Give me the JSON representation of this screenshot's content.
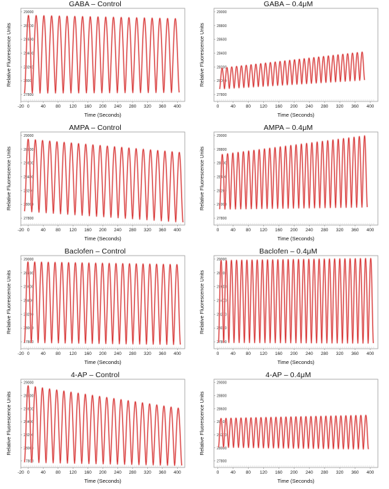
{
  "chart_data": [
    {
      "type": "line",
      "title": "GABA – Control",
      "xlabel": "Time (Seconds)",
      "ylabel": "Relative Fluorescence Units",
      "xlim": [
        -20,
        420
      ],
      "ylim": [
        27700,
        29050
      ],
      "xticks": [
        -20,
        0,
        40,
        80,
        120,
        160,
        200,
        240,
        280,
        320,
        360,
        400
      ],
      "yticks": [
        27800,
        28000,
        28200,
        28400,
        28600,
        28800,
        29000
      ],
      "xtick_labels": [
        "-20",
        "0",
        "40",
        "80",
        "120",
        "160",
        "200",
        "240",
        "280",
        "320",
        "360",
        "400"
      ],
      "ytick_labels": [
        "27800",
        "28000",
        "28200",
        "28400",
        "28600",
        "28800",
        "29000"
      ],
      "series": [
        {
          "x_start": -10,
          "x_end": 405,
          "oscillations": 20,
          "peak_start": 28950,
          "peak_end": 28900,
          "trough_start": 27820,
          "trough_end": 27830
        }
      ],
      "color": "#d42a2a"
    },
    {
      "type": "line",
      "title": "GABA – 0.4μM",
      "xlabel": "Time (Seconds)",
      "ylabel": "Relative Fluorescence Units",
      "xlim": [
        -10,
        420
      ],
      "ylim": [
        27700,
        29050
      ],
      "xticks": [
        0,
        40,
        80,
        120,
        160,
        200,
        240,
        280,
        320,
        360,
        400
      ],
      "yticks": [
        27800,
        28000,
        28200,
        28400,
        28600,
        28800,
        29000
      ],
      "xtick_labels": [
        "0",
        "40",
        "80",
        "120",
        "160",
        "200",
        "240",
        "280",
        "320",
        "360",
        "400"
      ],
      "ytick_labels": [
        "27800",
        "28000",
        "28200",
        "28400",
        "28600",
        "28800",
        "29000"
      ],
      "series": [
        {
          "x_start": 5,
          "x_end": 385,
          "oscillations": 30,
          "peak_start": 28180,
          "peak_end": 28420,
          "trough_start": 27880,
          "trough_end": 28010
        }
      ],
      "color": "#d42a2a"
    },
    {
      "type": "line",
      "title": "AMPA – Control",
      "xlabel": "Time (Seconds)",
      "ylabel": "Relative Fluorescence Units",
      "xlim": [
        -20,
        420
      ],
      "ylim": [
        27700,
        29050
      ],
      "xticks": [
        -20,
        0,
        40,
        80,
        120,
        160,
        200,
        240,
        280,
        320,
        360,
        400
      ],
      "yticks": [
        27800,
        28000,
        28200,
        28400,
        28600,
        28800,
        29000
      ],
      "xtick_labels": [
        "-20",
        "0",
        "40",
        "80",
        "120",
        "160",
        "200",
        "240",
        "280",
        "320",
        "360",
        "400"
      ],
      "ytick_labels": [
        "27800",
        "28000",
        "28200",
        "28400",
        "28600",
        "28800",
        "29000"
      ],
      "series": [
        {
          "x_start": -10,
          "x_end": 415,
          "oscillations": 22,
          "peak_start": 28950,
          "peak_end": 28750,
          "trough_start": 27900,
          "trough_end": 27740
        }
      ],
      "color": "#d42a2a"
    },
    {
      "type": "line",
      "title": "AMPA – 0.4μM",
      "xlabel": "Time (Seconds)",
      "ylabel": "Relative Fluorescence Units",
      "xlim": [
        -10,
        420
      ],
      "ylim": [
        27700,
        29050
      ],
      "xticks": [
        0,
        40,
        80,
        120,
        160,
        200,
        240,
        280,
        320,
        360,
        400
      ],
      "yticks": [
        27800,
        28000,
        28200,
        28400,
        28600,
        28800,
        29000
      ],
      "xtick_labels": [
        "0",
        "40",
        "80",
        "120",
        "160",
        "200",
        "240",
        "280",
        "320",
        "360",
        "400"
      ],
      "ytick_labels": [
        "27800",
        "28000",
        "28200",
        "28400",
        "28600",
        "28800",
        "29000"
      ],
      "series": [
        {
          "x_start": 5,
          "x_end": 392,
          "oscillations": 28,
          "peak_start": 28720,
          "peak_end": 29000,
          "trough_start": 27930,
          "trough_end": 27960
        }
      ],
      "color": "#d42a2a"
    },
    {
      "type": "line",
      "title": "Baclofen – Control",
      "xlabel": "Time (Seconds)",
      "ylabel": "Relative Fluorescence Units",
      "xlim": [
        -20,
        420
      ],
      "ylim": [
        27700,
        29050
      ],
      "xticks": [
        -20,
        0,
        40,
        80,
        120,
        160,
        200,
        240,
        280,
        320,
        360,
        400
      ],
      "yticks": [
        27800,
        28000,
        28200,
        28400,
        28600,
        28800,
        29000
      ],
      "xtick_labels": [
        "-20",
        "0",
        "40",
        "80",
        "120",
        "160",
        "200",
        "240",
        "280",
        "320",
        "360",
        "400"
      ],
      "ytick_labels": [
        "27800",
        "28000",
        "28200",
        "28400",
        "28600",
        "28800",
        "29000"
      ],
      "series": [
        {
          "x_start": -10,
          "x_end": 408,
          "oscillations": 23,
          "peak_start": 28960,
          "peak_end": 28920,
          "trough_start": 27790,
          "trough_end": 27760
        }
      ],
      "color": "#d42a2a"
    },
    {
      "type": "line",
      "title": "Baclofen – 0.4μM",
      "xlabel": "Time (Seconds)",
      "ylabel": "Relative Fluorescence Units",
      "xlim": [
        -10,
        420
      ],
      "ylim": [
        27700,
        29050
      ],
      "xticks": [
        0,
        40,
        80,
        120,
        160,
        200,
        240,
        280,
        320,
        360,
        400
      ],
      "yticks": [
        27800,
        28000,
        28200,
        28400,
        28600,
        28800,
        29000
      ],
      "xtick_labels": [
        "0",
        "40",
        "80",
        "120",
        "160",
        "200",
        "240",
        "280",
        "320",
        "360",
        "400"
      ],
      "ytick_labels": [
        "27800",
        "28000",
        "28200",
        "28400",
        "28600",
        "28800",
        "29000"
      ],
      "series": [
        {
          "x_start": 2,
          "x_end": 408,
          "oscillations": 30,
          "peak_start": 28980,
          "peak_end": 29010,
          "trough_start": 27790,
          "trough_end": 27780
        }
      ],
      "color": "#d42a2a"
    },
    {
      "type": "line",
      "title": "4-AP – Control",
      "xlabel": "Time (Seconds)",
      "ylabel": "Relative Fluorescence Units",
      "xlim": [
        -20,
        420
      ],
      "ylim": [
        27700,
        29050
      ],
      "xticks": [
        -20,
        0,
        40,
        80,
        120,
        160,
        200,
        240,
        280,
        320,
        360,
        400
      ],
      "yticks": [
        27800,
        28000,
        28200,
        28400,
        28600,
        28800,
        29000
      ],
      "xtick_labels": [
        "-20",
        "0",
        "40",
        "80",
        "120",
        "160",
        "200",
        "240",
        "280",
        "320",
        "360",
        "400"
      ],
      "ytick_labels": [
        "27800",
        "28000",
        "28200",
        "28400",
        "28600",
        "28800",
        "29000"
      ],
      "series": [
        {
          "x_start": -10,
          "x_end": 412,
          "oscillations": 22,
          "peak_start": 28960,
          "peak_end": 28600,
          "trough_start": 27780,
          "trough_end": 27730
        }
      ],
      "color": "#d42a2a"
    },
    {
      "type": "line",
      "title": "4-AP – 0.4μM",
      "xlabel": "Time (Seconds)",
      "ylabel": "Relative Fluorescence Units",
      "xlim": [
        -10,
        420
      ],
      "ylim": [
        27700,
        29050
      ],
      "xticks": [
        0,
        40,
        80,
        120,
        160,
        200,
        240,
        280,
        320,
        360,
        400
      ],
      "yticks": [
        27800,
        28000,
        28200,
        28400,
        28600,
        28800,
        29000
      ],
      "xtick_labels": [
        "0",
        "40",
        "80",
        "120",
        "160",
        "200",
        "240",
        "280",
        "320",
        "360",
        "400"
      ],
      "ytick_labels": [
        "27800",
        "28000",
        "28200",
        "28400",
        "28600",
        "28800",
        "29000"
      ],
      "series": [
        {
          "x_start": 2,
          "x_end": 395,
          "oscillations": 30,
          "peak_start": 28450,
          "peak_end": 28500,
          "trough_start": 28010,
          "trough_end": 27980
        }
      ],
      "color": "#d42a2a"
    }
  ]
}
